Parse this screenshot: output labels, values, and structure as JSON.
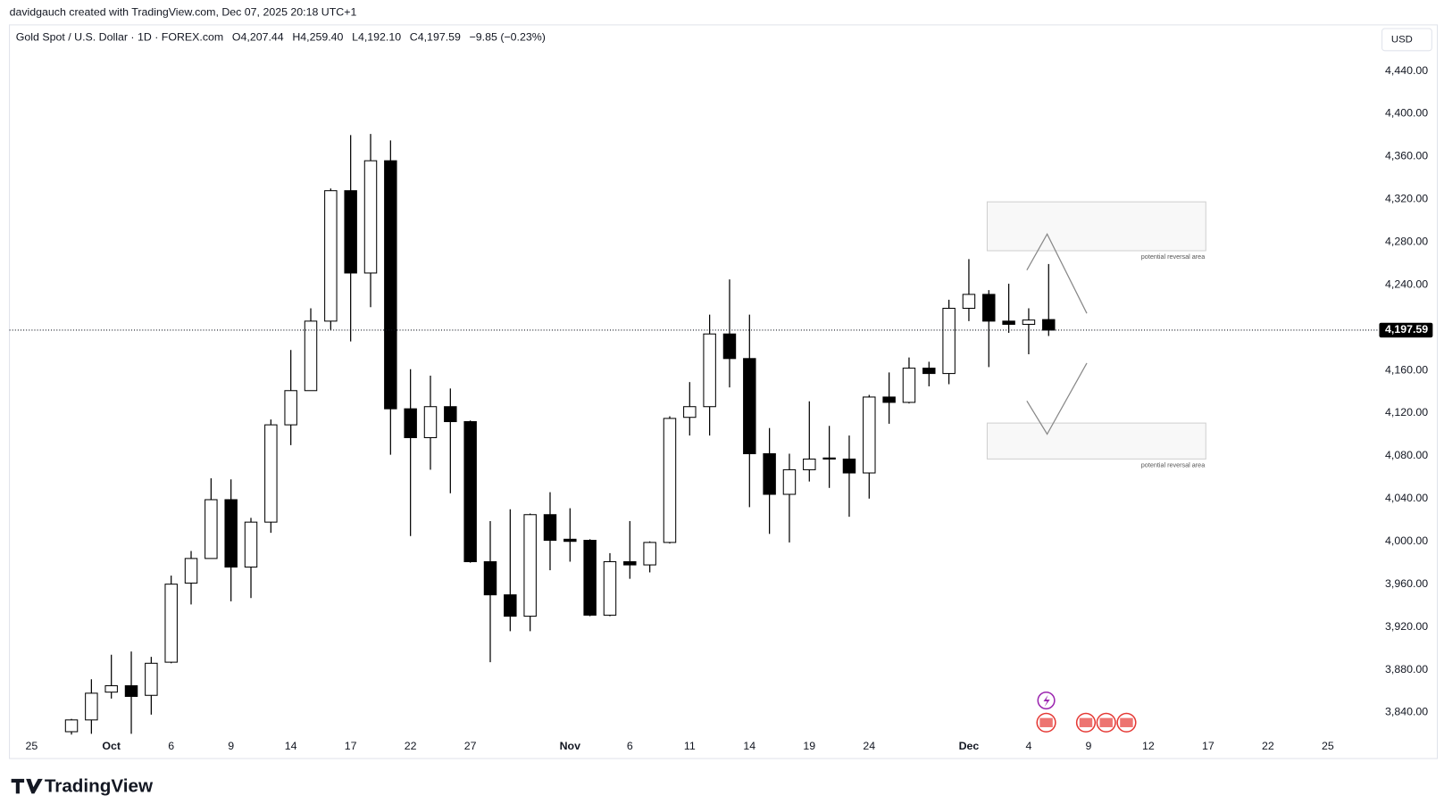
{
  "header": {
    "credit": "davidgauch created with TradingView.com, Dec 07, 2025 20:18 UTC+1",
    "currency": "USD",
    "logo": "TradingView"
  },
  "chart_data": {
    "type": "candlestick",
    "title": "Gold Spot / U.S. Dollar · 1D · FOREX.com",
    "ohlc_labels": [
      "O4,207.44",
      "H4,259.40",
      "L4,192.10",
      "C4,197.59",
      "−9.85 (−0.23%)"
    ],
    "categories": [
      "25",
      null,
      null,
      null,
      "Oct",
      null,
      null,
      "6",
      null,
      null,
      "9",
      null,
      null,
      "14",
      null,
      null,
      "17",
      null,
      null,
      "22",
      null,
      null,
      "27",
      null,
      null,
      null,
      null,
      "Nov",
      null,
      null,
      "6",
      null,
      null,
      "11",
      null,
      null,
      "14",
      null,
      null,
      "19",
      null,
      null,
      "24",
      null,
      null,
      null,
      null,
      "Dec",
      null,
      null,
      "4",
      null,
      null,
      "9",
      null,
      null,
      "12",
      null,
      null,
      "17",
      null,
      null,
      "22",
      null,
      null,
      "25"
    ],
    "open": [
      null,
      null,
      3822,
      3833,
      3859,
      3865,
      3856,
      3887,
      3961,
      3984,
      4039,
      3976,
      4018,
      4109,
      4141,
      4206,
      4328,
      4251,
      4356,
      4124,
      4097,
      4126,
      4112,
      3981,
      3950,
      3930,
      4025,
      4002,
      4001,
      3931,
      3981,
      3978,
      3999,
      4116,
      4126,
      4194,
      4171,
      4082,
      4044,
      4067,
      4078,
      4077,
      4064,
      4135,
      4130,
      4162,
      4157,
      4218,
      4231,
      4206,
      4203,
      4207.44,
      null,
      null,
      null,
      null,
      null,
      null,
      null,
      null,
      null,
      null,
      null,
      null,
      null,
      null
    ],
    "high": [
      null,
      null,
      3834,
      3871,
      3894,
      3897,
      3892,
      3968,
      3991,
      4059,
      4058,
      4022,
      4114,
      4179,
      4218,
      4330,
      4380,
      4381,
      4375,
      4161,
      4155,
      4143,
      4113,
      4019,
      4030,
      4026,
      4046,
      4031,
      4002,
      3989,
      4019,
      4000,
      4117,
      4149,
      4212,
      4245,
      4212,
      4106,
      4082,
      4131,
      4108,
      4099,
      4137,
      4158,
      4172,
      4168,
      4226,
      4264,
      4235,
      4241,
      4218,
      4259.4,
      null,
      null,
      null,
      null,
      null,
      null,
      null,
      null,
      null,
      null,
      null,
      null,
      null,
      null
    ],
    "low": [
      null,
      null,
      3815,
      3820,
      3853,
      3820,
      3838,
      3886,
      3941,
      3984,
      3944,
      3947,
      4008,
      4090,
      4141,
      4198,
      4187,
      4219,
      4081,
      4005,
      4067,
      4045,
      3980,
      3887,
      3916,
      3916,
      3973,
      3981,
      3930,
      3930,
      3965,
      3971,
      3998,
      4099,
      4099,
      4144,
      4032,
      4007,
      3999,
      4056,
      4050,
      4023,
      4040,
      4110,
      4129,
      4145,
      4147,
      4206,
      4163,
      4195,
      4175,
      4192.1,
      null,
      null,
      null,
      null,
      null,
      null,
      null,
      null,
      null,
      null,
      null,
      null,
      null,
      null
    ],
    "close": [
      null,
      null,
      3833,
      3858,
      3865,
      3855,
      3886,
      3960,
      3984,
      4039,
      3976,
      4018,
      4109,
      4141,
      4206,
      4328,
      4251,
      4356,
      4124,
      4097,
      4126,
      4112,
      3981,
      3950,
      3930,
      4025,
      4001,
      4000,
      3931,
      3981,
      3978,
      3999,
      4115,
      4126,
      4194,
      4171,
      4082,
      4044,
      4067,
      4077,
      4077,
      4064,
      4135,
      4130,
      4162,
      4157,
      4218,
      4231,
      4206,
      4203,
      4207,
      4197.59,
      null,
      null,
      null,
      null,
      null,
      null,
      null,
      null,
      null,
      null,
      null,
      null,
      null,
      null
    ],
    "up_color": "#ffffff",
    "down_color": "#000000",
    "border_color": "#000000",
    "ylim": [
      3819.3,
      4482.2
    ],
    "yticks": [
      {
        "value": 3840,
        "label": "3,840.00"
      },
      {
        "value": 3880,
        "label": "3,880.00"
      },
      {
        "value": 3920,
        "label": "3,920.00"
      },
      {
        "value": 3960,
        "label": "3,960.00"
      },
      {
        "value": 4000,
        "label": "4,000.00"
      },
      {
        "value": 4040,
        "label": "4,040.00"
      },
      {
        "value": 4080,
        "label": "4,080.00"
      },
      {
        "value": 4120,
        "label": "4,120.00"
      },
      {
        "value": 4160,
        "label": "4,160.00"
      },
      {
        "value": 4200,
        "label": "4,200.00"
      },
      {
        "value": 4240,
        "label": "4,240.00"
      },
      {
        "value": 4280,
        "label": "4,280.00"
      },
      {
        "value": 4320,
        "label": "4,320.00"
      },
      {
        "value": 4360,
        "label": "4,360.00"
      },
      {
        "value": 4400,
        "label": "4,400.00"
      },
      {
        "value": 4440,
        "label": "4,440.00"
      }
    ],
    "last_price": {
      "value": 4197.59,
      "label": "4,197.59"
    },
    "annotations": [
      "potential reversal area",
      "potential reversal area"
    ],
    "grid": false
  }
}
